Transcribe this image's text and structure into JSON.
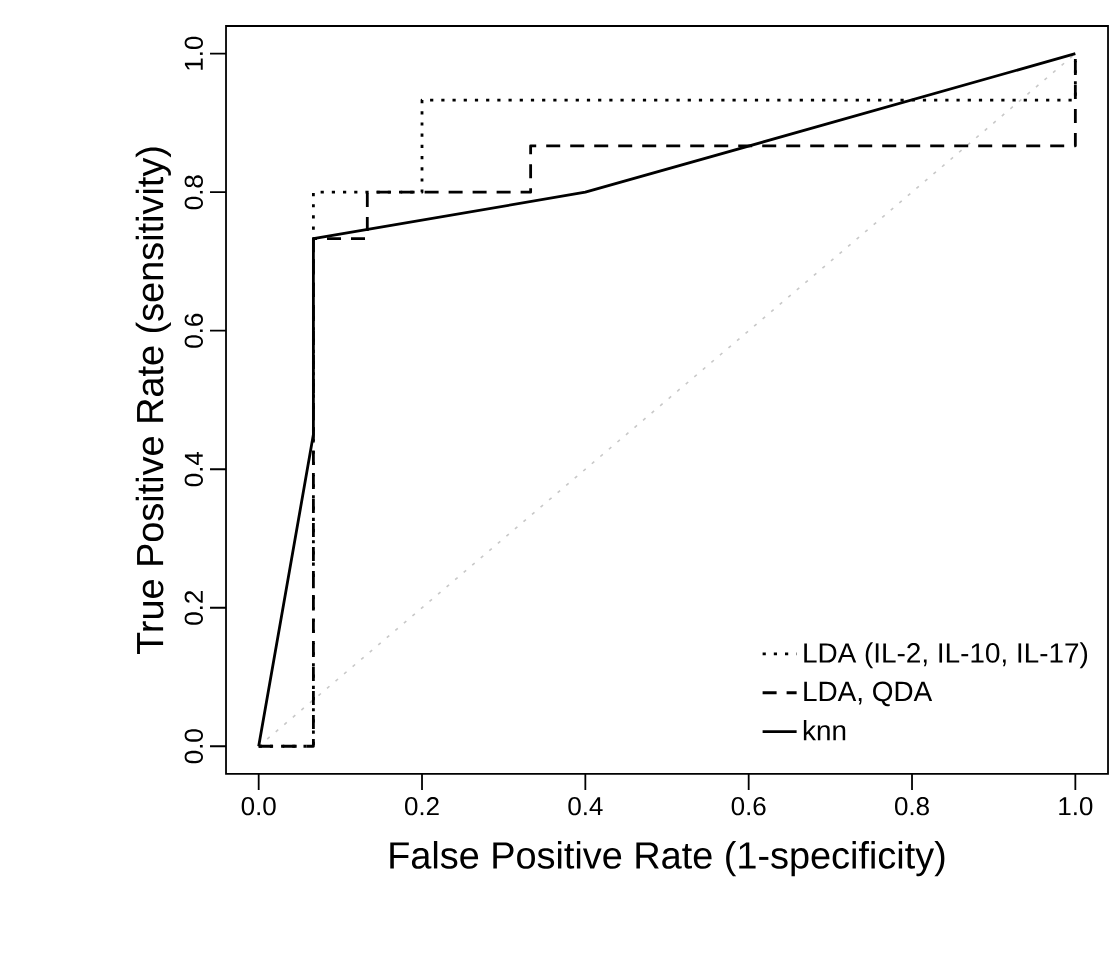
{
  "chart_data": {
    "type": "line",
    "xlabel": "False Positive Rate (1-specificity)",
    "ylabel": "True Positive Rate (sensitivity)",
    "xlim": [
      -0.04,
      1.04
    ],
    "ylim": [
      -0.04,
      1.04
    ],
    "xticks": [
      {
        "value": 0,
        "label": "0.0"
      },
      {
        "value": 0.2,
        "label": "0.2"
      },
      {
        "value": 0.4,
        "label": "0.4"
      },
      {
        "value": 0.6,
        "label": "0.6"
      },
      {
        "value": 0.8,
        "label": "0.8"
      },
      {
        "value": 1,
        "label": "1.0"
      }
    ],
    "yticks": [
      {
        "value": 0,
        "label": "0.0"
      },
      {
        "value": 0.2,
        "label": "0.2"
      },
      {
        "value": 0.4,
        "label": "0.4"
      },
      {
        "value": 0.6,
        "label": "0.6"
      },
      {
        "value": 0.8,
        "label": "0.8"
      },
      {
        "value": 1,
        "label": "1.0"
      }
    ],
    "grid": false,
    "legend": "bottom right",
    "marker": "none",
    "series": [
      {
        "color": "#c8c8c8",
        "line_style": "dotted",
        "x": [
          0,
          1
        ],
        "values": [
          0,
          1
        ]
      },
      {
        "name": "LDA (IL-2, IL-10, IL-17)",
        "color": "#000000",
        "line_style": "dotted",
        "x": [
          0,
          0.067,
          0.067,
          0.2,
          0.2,
          1,
          1
        ],
        "values": [
          0,
          0,
          0.8,
          0.8,
          0.933,
          0.933,
          1
        ]
      },
      {
        "name": "LDA, QDA",
        "color": "#000000",
        "line_style": "dashed",
        "x": [
          0,
          0.067,
          0.067,
          0.133,
          0.133,
          0.333,
          0.333,
          1,
          1
        ],
        "values": [
          0,
          0,
          0.733,
          0.733,
          0.8,
          0.8,
          0.867,
          0.867,
          1
        ]
      },
      {
        "name": "knn",
        "color": "#000000",
        "line_style": "solid",
        "x": [
          0,
          0.067,
          0.067,
          0.4,
          1
        ],
        "values": [
          0,
          0.45,
          0.733,
          0.8,
          1
        ]
      }
    ]
  }
}
